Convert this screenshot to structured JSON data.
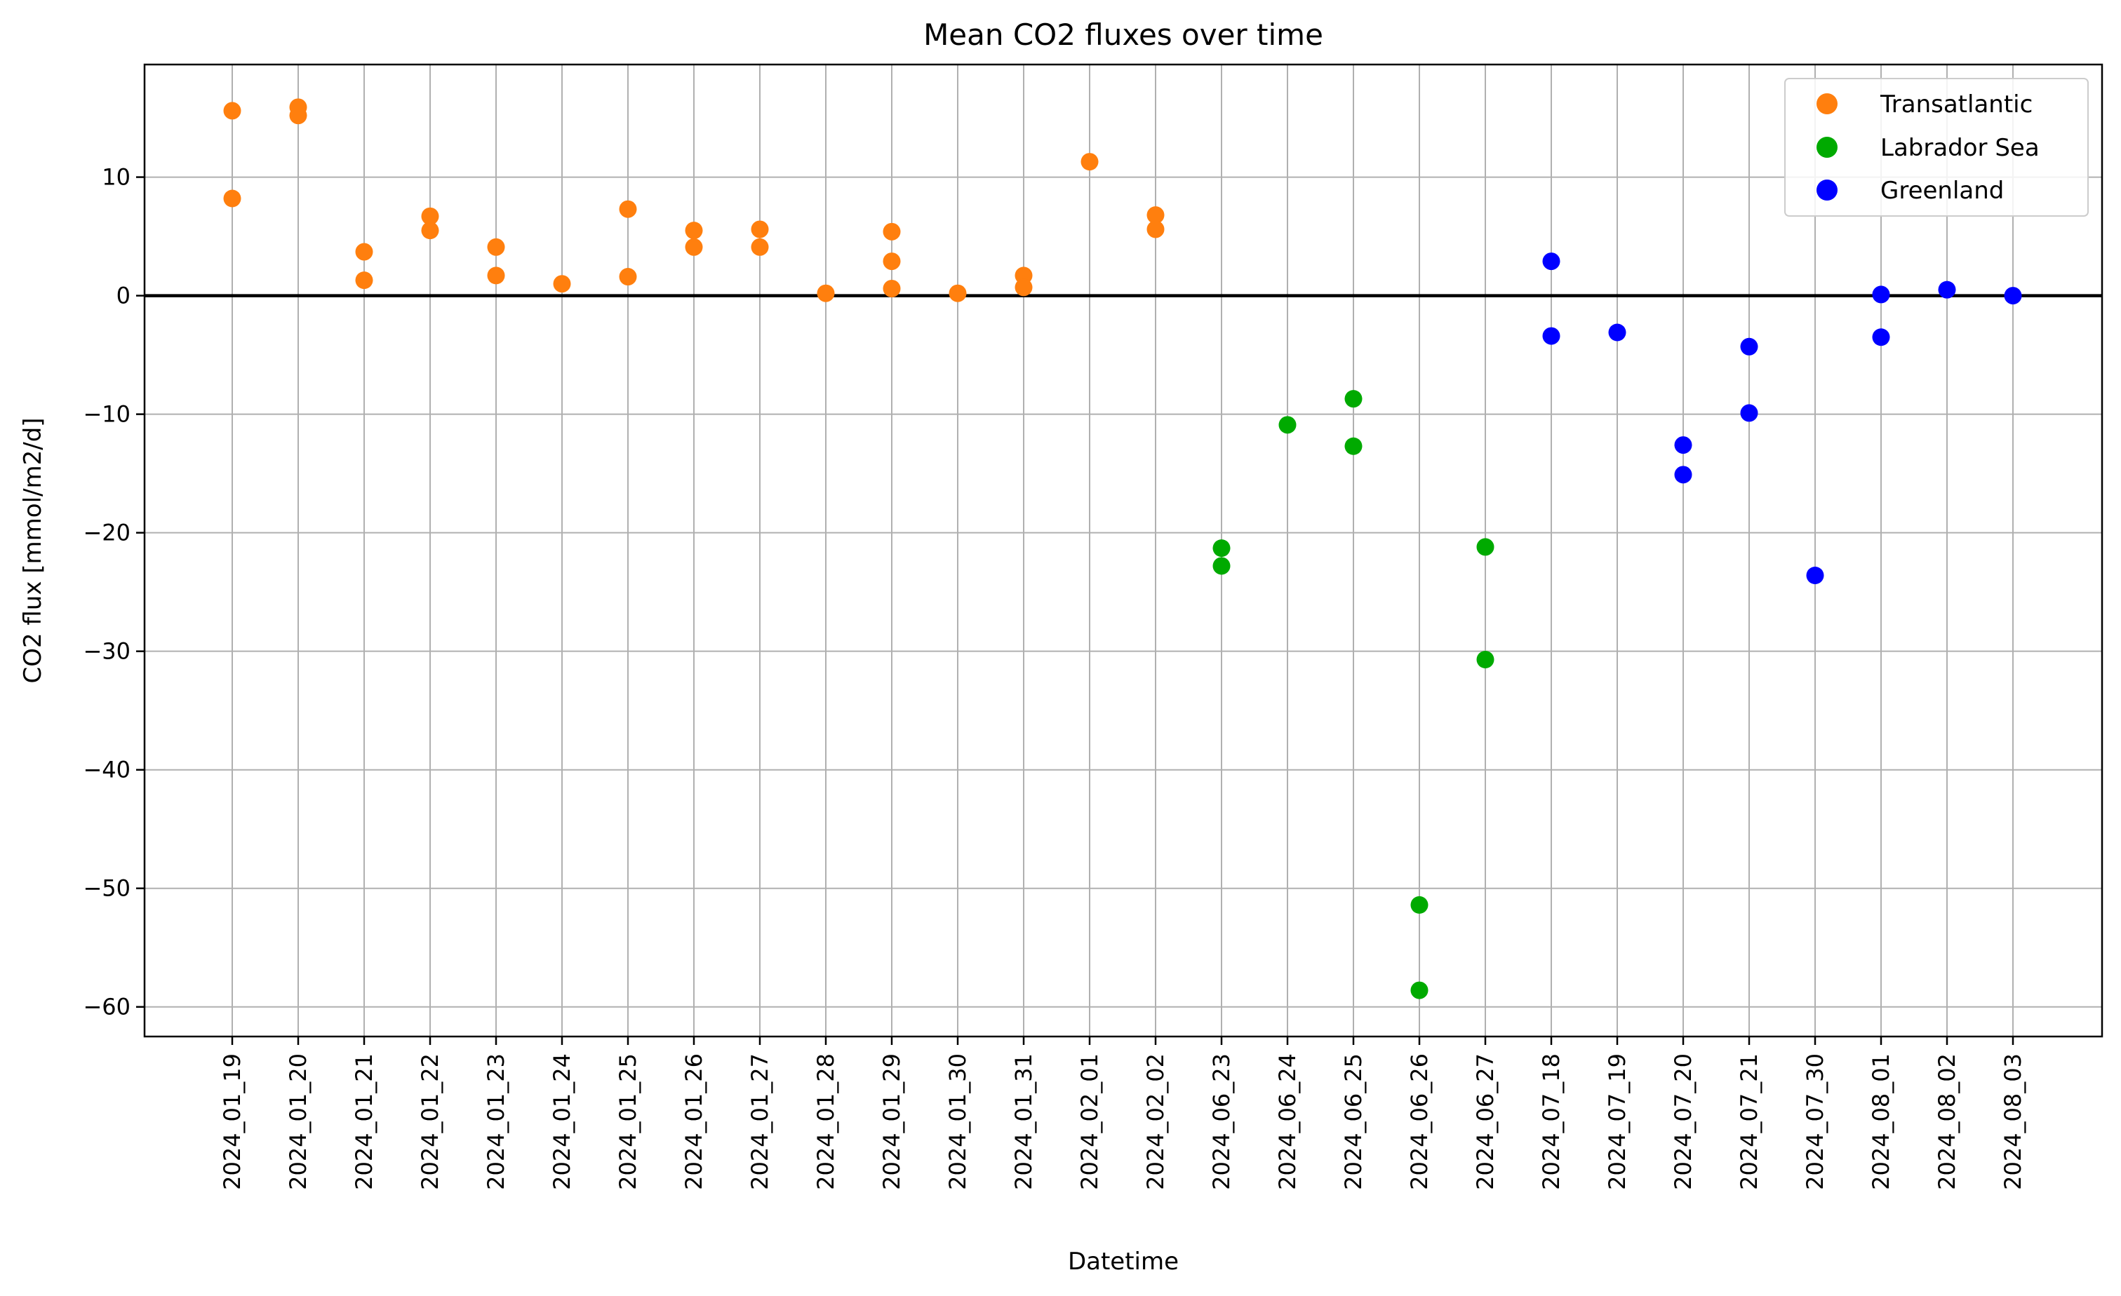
{
  "chart_data": {
    "type": "scatter",
    "title": "Mean CO2 fluxes over time",
    "xlabel": "Datetime",
    "ylabel": "CO2 flux [mmol/m2/d]",
    "ylim": [
      -62.5,
      19.5
    ],
    "yticks": [
      10,
      0,
      -10,
      -20,
      -30,
      -40,
      -50,
      -60
    ],
    "ytick_labels": [
      "10",
      "0",
      "−10",
      "−20",
      "−30",
      "−40",
      "−50",
      "−60"
    ],
    "grid": true,
    "zero_line": true,
    "legend_position": "top-right",
    "categories": [
      "2024_01_19",
      "2024_01_20",
      "2024_01_21",
      "2024_01_22",
      "2024_01_23",
      "2024_01_24",
      "2024_01_25",
      "2024_01_26",
      "2024_01_27",
      "2024_01_28",
      "2024_01_29",
      "2024_01_30",
      "2024_01_31",
      "2024_02_01",
      "2024_02_02",
      "2024_06_23",
      "2024_06_24",
      "2024_06_25",
      "2024_06_26",
      "2024_06_27",
      "2024_07_18",
      "2024_07_19",
      "2024_07_20",
      "2024_07_21",
      "2024_07_30",
      "2024_08_01",
      "2024_08_02",
      "2024_08_03"
    ],
    "series": [
      {
        "name": "Transatlantic",
        "color": "#ff7f0e",
        "points": [
          [
            "2024_01_19",
            15.6
          ],
          [
            "2024_01_19",
            8.2
          ],
          [
            "2024_01_20",
            15.9
          ],
          [
            "2024_01_20",
            15.2
          ],
          [
            "2024_01_21",
            3.7
          ],
          [
            "2024_01_21",
            1.3
          ],
          [
            "2024_01_22",
            6.7
          ],
          [
            "2024_01_22",
            5.5
          ],
          [
            "2024_01_23",
            4.1
          ],
          [
            "2024_01_23",
            1.7
          ],
          [
            "2024_01_24",
            1.0
          ],
          [
            "2024_01_25",
            7.3
          ],
          [
            "2024_01_25",
            1.6
          ],
          [
            "2024_01_26",
            5.5
          ],
          [
            "2024_01_26",
            4.1
          ],
          [
            "2024_01_27",
            5.6
          ],
          [
            "2024_01_27",
            4.1
          ],
          [
            "2024_01_28",
            0.2
          ],
          [
            "2024_01_29",
            5.4
          ],
          [
            "2024_01_29",
            2.9
          ],
          [
            "2024_01_29",
            0.6
          ],
          [
            "2024_01_30",
            0.2
          ],
          [
            "2024_01_31",
            1.7
          ],
          [
            "2024_01_31",
            0.7
          ],
          [
            "2024_02_01",
            11.3
          ],
          [
            "2024_02_02",
            6.8
          ],
          [
            "2024_02_02",
            5.6
          ]
        ]
      },
      {
        "name": "Labrador Sea",
        "color": "#00aa00",
        "points": [
          [
            "2024_06_23",
            -21.3
          ],
          [
            "2024_06_23",
            -22.8
          ],
          [
            "2024_06_24",
            -10.9
          ],
          [
            "2024_06_25",
            -8.7
          ],
          [
            "2024_06_25",
            -12.7
          ],
          [
            "2024_06_26",
            -51.4
          ],
          [
            "2024_06_26",
            -58.6
          ],
          [
            "2024_06_27",
            -21.2
          ],
          [
            "2024_06_27",
            -30.7
          ]
        ]
      },
      {
        "name": "Greenland",
        "color": "#0000ff",
        "points": [
          [
            "2024_07_18",
            2.9
          ],
          [
            "2024_07_18",
            -3.4
          ],
          [
            "2024_07_19",
            -3.1
          ],
          [
            "2024_07_20",
            -12.6
          ],
          [
            "2024_07_20",
            -15.1
          ],
          [
            "2024_07_21",
            -4.3
          ],
          [
            "2024_07_21",
            -9.9
          ],
          [
            "2024_07_30",
            -23.6
          ],
          [
            "2024_08_01",
            0.1
          ],
          [
            "2024_08_01",
            -3.5
          ],
          [
            "2024_08_02",
            0.5
          ],
          [
            "2024_08_03",
            0.0
          ]
        ]
      }
    ]
  }
}
